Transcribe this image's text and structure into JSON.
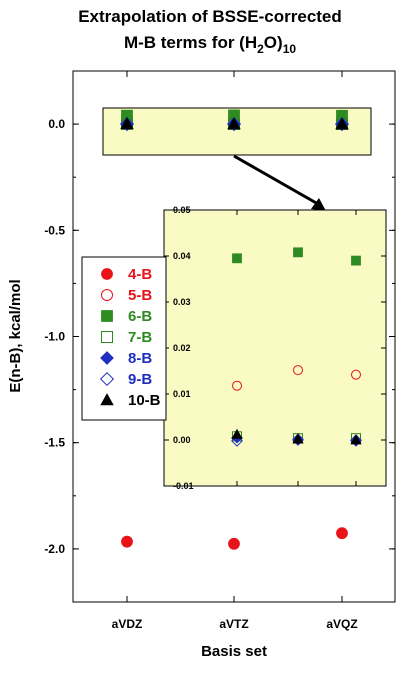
{
  "chart_data": {
    "type": "scatter",
    "title_line1": "Extrapolation of BSSE-corrected",
    "title_line2_prefix": "M-B terms for (H",
    "title_line2_sub1": "2",
    "title_line2_mid": "O)",
    "title_line2_sub2": "10",
    "xlabel": "Basis set",
    "ylabel": "E(n-B), kcal/mol",
    "categories": [
      "aVDZ",
      "aVTZ",
      "aVQZ"
    ],
    "ylim": [
      -2.25,
      0.25
    ],
    "yticks": [
      "0.0",
      "-0.5",
      "-1.0",
      "-1.5",
      "-2.0"
    ],
    "ytick_values": [
      0.0,
      -0.5,
      -1.0,
      -1.5,
      -2.0
    ],
    "legend_position": "left-middle",
    "series": [
      {
        "name": "4-B",
        "color": "#e8141a",
        "marker": "circle-filled",
        "values": [
          -1.966,
          -1.976,
          -1.926
        ]
      },
      {
        "name": "5-B",
        "color": "#e8141a",
        "marker": "circle-open",
        "values": [
          0.0118,
          0.0152,
          0.0142
        ]
      },
      {
        "name": "6-B",
        "color": "#2e8b22",
        "marker": "square-filled",
        "values": [
          0.0395,
          0.0408,
          0.039
        ]
      },
      {
        "name": "7-B",
        "color": "#2e8b22",
        "marker": "square-open",
        "values": [
          0.0008,
          0.0004,
          0.0004
        ]
      },
      {
        "name": "8-B",
        "color": "#1f2fbf",
        "marker": "diamond-filled",
        "values": [
          0.0005,
          0.0002,
          0.0
        ]
      },
      {
        "name": "9-B",
        "color": "#1f2fbf",
        "marker": "diamond-open",
        "values": [
          -0.0002,
          0.0,
          -0.0002
        ]
      },
      {
        "name": "10-B",
        "color": "#000000",
        "marker": "triangle-filled",
        "values": [
          0.0012,
          0.0002,
          0.0
        ]
      }
    ],
    "inset": {
      "ylim": [
        -0.01,
        0.05
      ],
      "yticks": [
        "0.05",
        "0.04",
        "0.03",
        "0.02",
        "0.01",
        "0.00",
        "-0.01"
      ],
      "ytick_values": [
        0.05,
        0.04,
        0.03,
        0.02,
        0.01,
        0.0,
        -0.01
      ],
      "background": "#fafac4"
    }
  }
}
